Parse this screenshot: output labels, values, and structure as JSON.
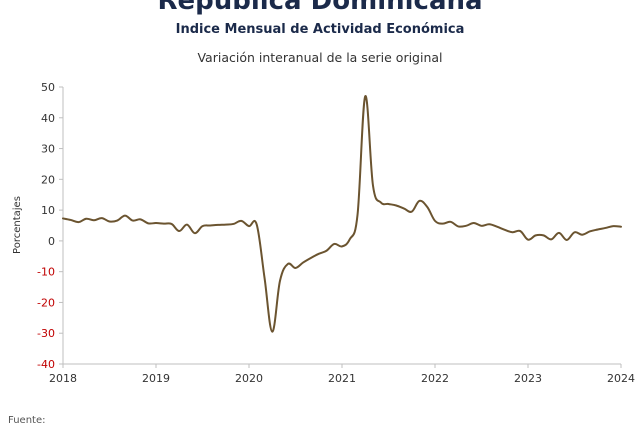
{
  "chart_data": {
    "type": "line",
    "title": "República Dominicana",
    "subtitle": "Indice Mensual de  Actividad Económica",
    "subtitle2": "Variación interanual de la serie original",
    "ylabel": "Porcentajes",
    "xlabel": "",
    "ylim": [
      -40,
      50
    ],
    "xlim": [
      2018,
      2024
    ],
    "yticks": [
      "50",
      "40",
      "30",
      "20",
      "10",
      "0",
      "-10",
      "-20",
      "-30",
      "-40"
    ],
    "xticks": [
      "2018",
      "2019",
      "2020",
      "2021",
      "2022",
      "2023",
      "2024"
    ],
    "grid": false,
    "line_color": "#6b5430",
    "negative_tick_color": "#c00000",
    "series": [
      {
        "x": [
          2018.0,
          2018.083,
          2018.167,
          2018.25,
          2018.333,
          2018.417,
          2018.5,
          2018.583,
          2018.667,
          2018.75,
          2018.833,
          2018.917,
          2019.0,
          2019.083,
          2019.167,
          2019.25,
          2019.333,
          2019.417,
          2019.5,
          2019.583,
          2019.667,
          2019.75,
          2019.833,
          2019.917,
          2020.0,
          2020.083,
          2020.167,
          2020.25,
          2020.333,
          2020.417,
          2020.5,
          2020.583,
          2020.667,
          2020.75,
          2020.833,
          2020.917,
          2021.0,
          2021.083,
          2021.167,
          2021.25,
          2021.333,
          2021.417,
          2021.5,
          2021.583,
          2021.667,
          2021.75,
          2021.833,
          2021.917,
          2022.0,
          2022.083,
          2022.167,
          2022.25,
          2022.333,
          2022.417,
          2022.5,
          2022.583,
          2022.667,
          2022.75,
          2022.833,
          2022.917,
          2023.0,
          2023.083,
          2023.167,
          2023.25,
          2023.333,
          2023.417,
          2023.5,
          2023.583,
          2023.667,
          2023.75,
          2023.833,
          2023.917,
          2024.0
        ],
        "values": [
          7.3,
          6.8,
          6.1,
          7.2,
          6.7,
          7.4,
          6.3,
          6.6,
          8.2,
          6.6,
          7.0,
          5.7,
          5.8,
          5.6,
          5.5,
          3.2,
          5.3,
          2.5,
          4.8,
          5.0,
          5.2,
          5.3,
          5.5,
          6.5,
          4.8,
          5.3,
          -12.0,
          -29.5,
          -13.0,
          -7.5,
          -8.8,
          -7.0,
          -5.5,
          -4.2,
          -3.2,
          -1.0,
          -1.8,
          0.5,
          8.5,
          47.0,
          18.0,
          12.5,
          12.0,
          11.5,
          10.5,
          9.5,
          13.0,
          11.0,
          6.5,
          5.6,
          6.2,
          4.7,
          4.9,
          5.8,
          4.9,
          5.4,
          4.6,
          3.6,
          2.8,
          3.2,
          0.4,
          1.8,
          1.8,
          0.5,
          2.6,
          0.3,
          2.8,
          2.0,
          3.1,
          3.7,
          4.2,
          4.8,
          4.6
        ]
      }
    ]
  },
  "footer": {
    "source_label": "Fuente:"
  }
}
